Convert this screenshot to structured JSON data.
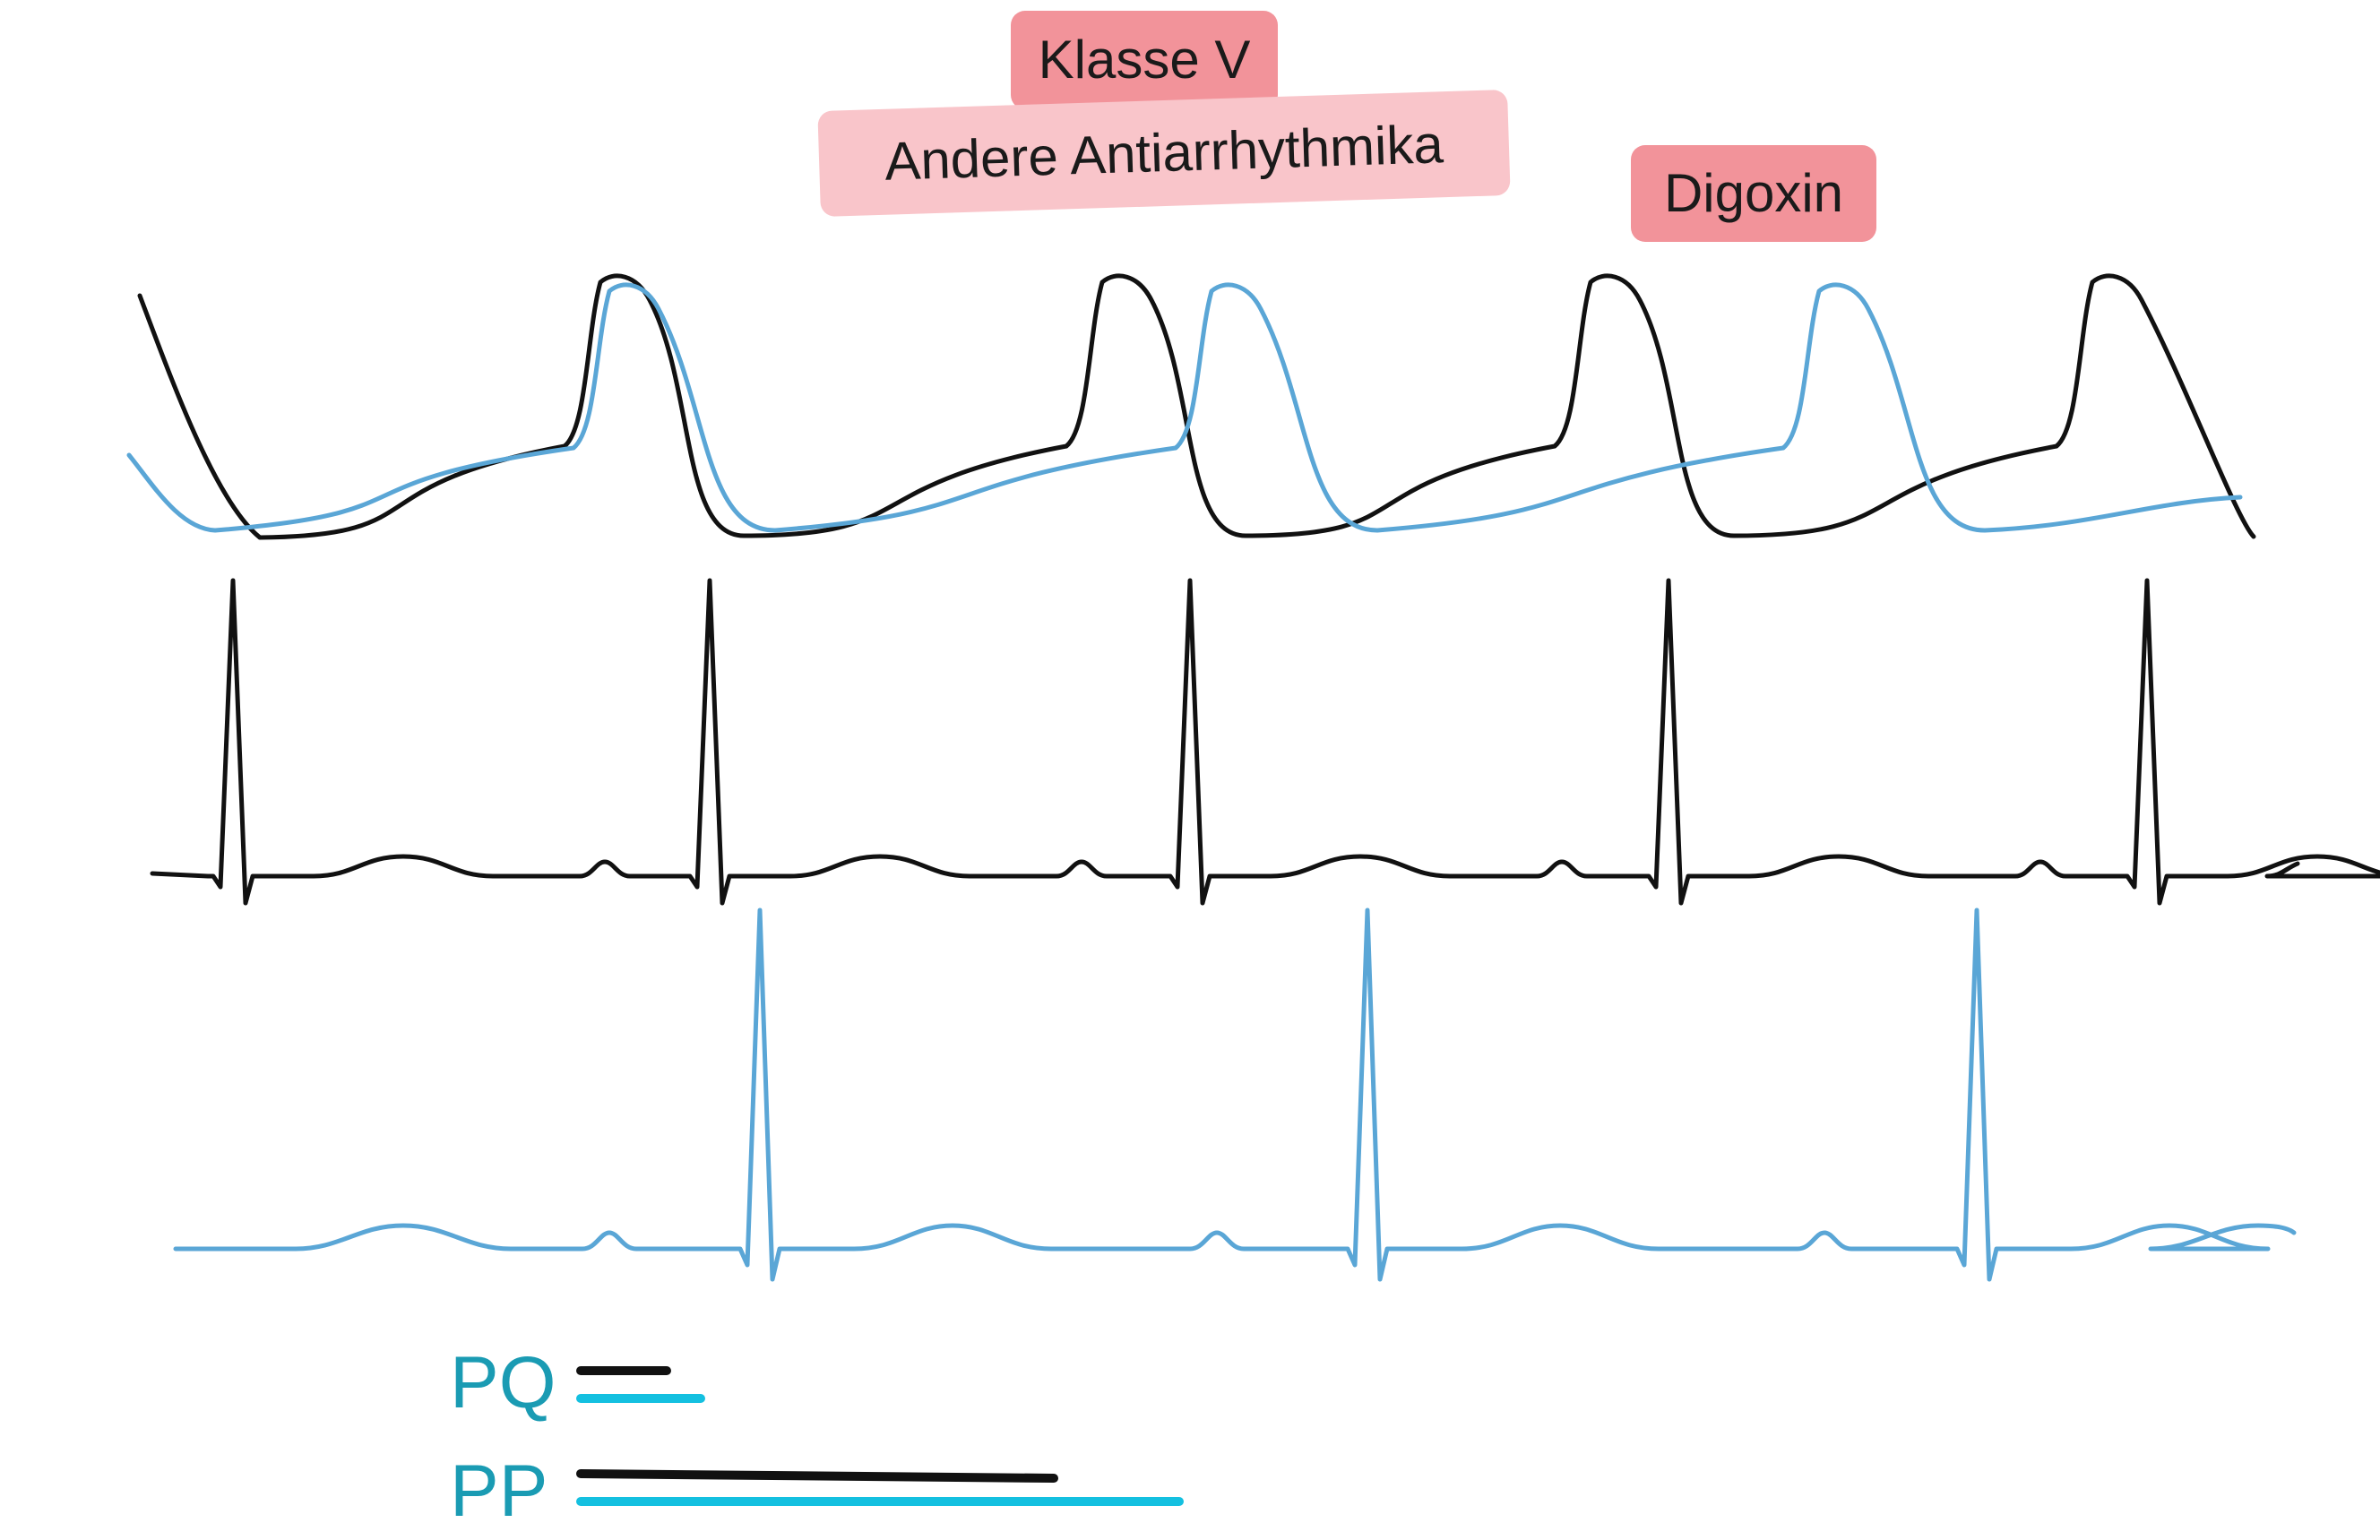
{
  "labels": {
    "class_v": "Klasse V",
    "other_antiarrhythmics": "Andere Antiarrhythmika",
    "digoxin": "Digoxin"
  },
  "legend": {
    "pq": "PQ",
    "pp": "PP"
  },
  "colors": {
    "baseline_trace": "#111111",
    "drug_trace": "#5aa6d6",
    "legend_blue": "#14c0e0",
    "legend_text": "#1a9bb3",
    "tag_dark": "#f2939a",
    "tag_light": "#f9c5ca"
  }
}
